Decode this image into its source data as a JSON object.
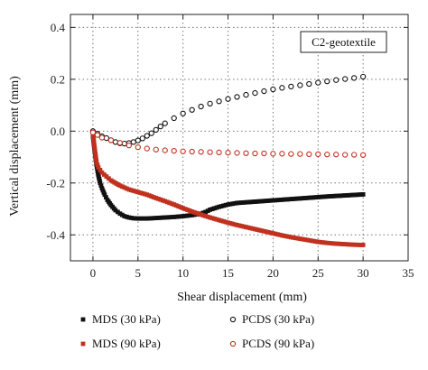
{
  "chart_data": {
    "type": "scatter",
    "title": "",
    "xlabel": "Shear displacement (mm)",
    "ylabel": "Vertical displacement (mm)",
    "xlim": [
      -2.5,
      35
    ],
    "ylim": [
      -0.5,
      0.45
    ],
    "xticks": [
      0,
      5,
      10,
      15,
      20,
      25,
      30,
      35
    ],
    "yticks": [
      -0.4,
      -0.2,
      0.0,
      0.2,
      0.4
    ],
    "ytick_labels": [
      "-0.4",
      "-0.2",
      "0.0",
      "0.2",
      "0.4"
    ],
    "grid": true,
    "grid_style": "dotted",
    "annotation": "C2-geotextile",
    "legend_position": "below-plot",
    "series": [
      {
        "name": "MDS (30 kPa)",
        "marker": "filled-square",
        "color": "#111111",
        "x": [
          0.0,
          0.2,
          0.4,
          0.6,
          0.8,
          1.0,
          1.3,
          1.6,
          2.0,
          2.5,
          3.0,
          3.5,
          4.0,
          4.5,
          5.0,
          6.0,
          7.0,
          8.0,
          9.0,
          10.0,
          11.0,
          12.0,
          12.5,
          13.0,
          14.0,
          15.0,
          16.0,
          18.0,
          20.0,
          22.0,
          24.0,
          26.0,
          28.0,
          30.0
        ],
        "y": [
          -0.02,
          -0.08,
          -0.13,
          -0.17,
          -0.2,
          -0.22,
          -0.245,
          -0.265,
          -0.285,
          -0.305,
          -0.318,
          -0.328,
          -0.333,
          -0.336,
          -0.337,
          -0.337,
          -0.335,
          -0.333,
          -0.331,
          -0.328,
          -0.324,
          -0.318,
          -0.312,
          -0.303,
          -0.292,
          -0.283,
          -0.277,
          -0.272,
          -0.267,
          -0.262,
          -0.257,
          -0.252,
          -0.248,
          -0.244
        ]
      },
      {
        "name": "MDS (90 kPa)",
        "marker": "filled-square",
        "color": "#c0311f",
        "x": [
          0.0,
          0.2,
          0.4,
          0.6,
          0.8,
          1.0,
          1.5,
          2.0,
          3.0,
          4.0,
          5.0,
          6.0,
          7.0,
          8.0,
          9.0,
          10.0,
          11.0,
          12.0,
          13.0,
          14.0,
          15.0,
          16.0,
          17.0,
          18.0,
          19.0,
          20.0,
          21.0,
          22.0,
          23.0,
          24.0,
          25.0,
          26.0,
          27.0,
          28.0,
          29.0,
          30.0
        ],
        "y": [
          -0.01,
          -0.07,
          -0.12,
          -0.14,
          -0.15,
          -0.16,
          -0.175,
          -0.19,
          -0.21,
          -0.225,
          -0.235,
          -0.245,
          -0.258,
          -0.27,
          -0.283,
          -0.297,
          -0.31,
          -0.322,
          -0.333,
          -0.343,
          -0.353,
          -0.362,
          -0.37,
          -0.378,
          -0.386,
          -0.394,
          -0.402,
          -0.409,
          -0.415,
          -0.421,
          -0.427,
          -0.431,
          -0.434,
          -0.436,
          -0.438,
          -0.439
        ]
      },
      {
        "name": "PCDS (30 kPa)",
        "marker": "open-circle",
        "color": "#111111",
        "x": [
          0.0,
          0.5,
          1.0,
          1.5,
          2.0,
          2.5,
          3.0,
          3.5,
          4.0,
          4.5,
          5.0,
          5.5,
          6.0,
          6.5,
          7.0,
          7.5,
          8.0,
          9.0,
          10.0,
          11.0,
          12.0,
          13.0,
          14.0,
          15.0,
          16.0,
          17.0,
          18.0,
          19.0,
          20.0,
          21.0,
          22.0,
          23.0,
          24.0,
          25.0,
          26.0,
          27.0,
          28.0,
          29.0,
          30.0
        ],
        "y": [
          0.0,
          -0.01,
          -0.02,
          -0.027,
          -0.035,
          -0.042,
          -0.047,
          -0.048,
          -0.046,
          -0.042,
          -0.036,
          -0.028,
          -0.018,
          -0.008,
          0.005,
          0.018,
          0.03,
          0.05,
          0.068,
          0.082,
          0.095,
          0.106,
          0.115,
          0.124,
          0.132,
          0.14,
          0.147,
          0.154,
          0.161,
          0.167,
          0.172,
          0.177,
          0.182,
          0.187,
          0.192,
          0.197,
          0.201,
          0.205,
          0.21
        ]
      },
      {
        "name": "PCDS (90 kPa)",
        "marker": "open-circle",
        "color": "#c0311f",
        "x": [
          0.0,
          0.5,
          1.0,
          2.0,
          3.0,
          4.0,
          5.0,
          6.0,
          7.0,
          8.0,
          9.0,
          10.0,
          11.0,
          12.0,
          13.0,
          14.0,
          15.0,
          16.0,
          17.0,
          18.0,
          19.0,
          20.0,
          21.0,
          22.0,
          23.0,
          24.0,
          25.0,
          26.0,
          27.0,
          28.0,
          29.0,
          30.0
        ],
        "y": [
          -0.005,
          -0.015,
          -0.025,
          -0.035,
          -0.045,
          -0.055,
          -0.062,
          -0.067,
          -0.071,
          -0.074,
          -0.076,
          -0.078,
          -0.079,
          -0.08,
          -0.081,
          -0.082,
          -0.083,
          -0.084,
          -0.085,
          -0.086,
          -0.086,
          -0.087,
          -0.087,
          -0.088,
          -0.088,
          -0.089,
          -0.089,
          -0.09,
          -0.09,
          -0.091,
          -0.091,
          -0.092
        ]
      }
    ]
  }
}
